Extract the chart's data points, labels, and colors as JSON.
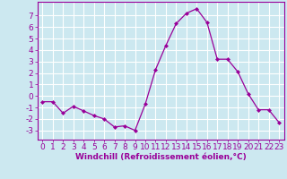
{
  "x": [
    0,
    1,
    2,
    3,
    4,
    5,
    6,
    7,
    8,
    9,
    10,
    11,
    12,
    13,
    14,
    15,
    16,
    17,
    18,
    19,
    20,
    21,
    22,
    23
  ],
  "y": [
    -0.5,
    -0.5,
    -1.5,
    -0.9,
    -1.3,
    -1.7,
    -2.0,
    -2.7,
    -2.6,
    -3.0,
    -0.7,
    2.3,
    4.4,
    6.3,
    7.2,
    7.6,
    6.4,
    3.2,
    3.2,
    2.1,
    0.2,
    -1.2,
    -1.2,
    -2.3
  ],
  "line_color": "#990099",
  "marker": "D",
  "marker_size": 2,
  "bg_color": "#cce8f0",
  "grid_color": "#ffffff",
  "xlabel": "Windchill (Refroidissement éolien,°C)",
  "xlim": [
    -0.5,
    23.5
  ],
  "ylim": [
    -3.8,
    8.2
  ],
  "yticks": [
    -3,
    -2,
    -1,
    0,
    1,
    2,
    3,
    4,
    5,
    6,
    7
  ],
  "xticks": [
    0,
    1,
    2,
    3,
    4,
    5,
    6,
    7,
    8,
    9,
    10,
    11,
    12,
    13,
    14,
    15,
    16,
    17,
    18,
    19,
    20,
    21,
    22,
    23
  ],
  "label_color": "#990099",
  "axis_color": "#990099",
  "tick_color": "#990099",
  "font_size": 6.5
}
